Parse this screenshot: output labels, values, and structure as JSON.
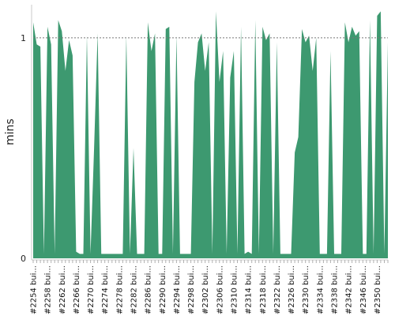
{
  "chart_data": {
    "type": "area",
    "title": "",
    "xlabel": "",
    "ylabel": "mins",
    "ylim": [
      0,
      1.15
    ],
    "reference_line": 1,
    "color": "#3d9970",
    "legend": "none",
    "grid": false,
    "y_ticks": [
      "0",
      "1"
    ],
    "x_tick_labels": [
      "#2254 bui...",
      "#2258 bui...",
      "#2262 bui...",
      "#2266 bui...",
      "#2270 bui...",
      "#2274 bui...",
      "#2278 bui...",
      "#2282 bui...",
      "#2286 bui...",
      "#2290 bui...",
      "#2294 bui...",
      "#2298 bui...",
      "#2302 bui...",
      "#2306 bui...",
      "#2310 bui...",
      "#2314 bui...",
      "#2318 bui...",
      "#2322 bui...",
      "#2326 bui...",
      "#2330 bui...",
      "#2334 bui...",
      "#2338 bui...",
      "#2342 bui...",
      "#2346 bui...",
      "#2350 bui..."
    ],
    "x_start": 2254,
    "x_end": 2353,
    "values": [
      1.07,
      0.97,
      0.96,
      0.02,
      1.05,
      0.97,
      0.02,
      1.08,
      1.03,
      0.85,
      0.99,
      0.92,
      0.03,
      0.02,
      0.02,
      1.01,
      0.02,
      0.5,
      1.02,
      0.02,
      0.02,
      0.02,
      0.02,
      0.02,
      0.02,
      0.02,
      1.01,
      0.02,
      0.5,
      0.02,
      0.02,
      0.02,
      1.07,
      0.94,
      1.02,
      0.02,
      0.02,
      1.04,
      1.05,
      0.02,
      1.01,
      0.02,
      0.02,
      0.02,
      0.02,
      0.8,
      0.98,
      1.02,
      0.85,
      0.98,
      0.02,
      1.12,
      0.8,
      0.94,
      0.02,
      0.82,
      0.94,
      0.02,
      1.05,
      0.02,
      0.03,
      0.02,
      1.08,
      0.02,
      1.05,
      0.99,
      1.02,
      0.02,
      0.98,
      0.02,
      0.02,
      0.02,
      0.02,
      0.48,
      0.55,
      1.04,
      0.98,
      1.01,
      0.85,
      1.0,
      0.02,
      0.02,
      0.02,
      0.94,
      0.02,
      0.02,
      0.02,
      1.07,
      0.98,
      1.05,
      1.01,
      1.03,
      0.02,
      0.02,
      1.08,
      0.02,
      1.1,
      1.12,
      0.02,
      0.98
    ]
  }
}
